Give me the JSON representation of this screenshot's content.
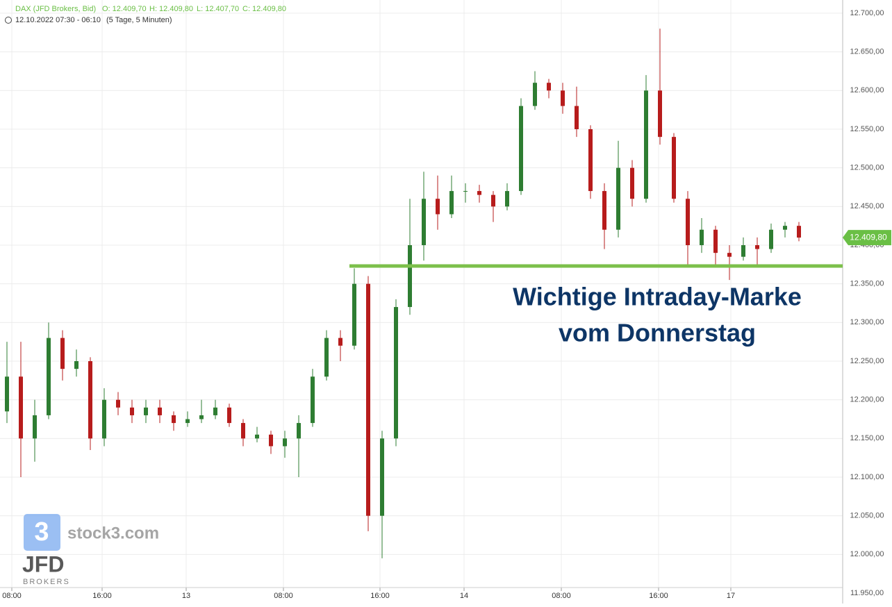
{
  "chart_data": {
    "type": "candlestick",
    "title": "DAX (JFD Brokers, Bid)",
    "ohlc_header": [
      "O: 12.409,70",
      "H: 12.409,80",
      "L: 12.407,70",
      "C: 12.409,80"
    ],
    "subtitle": "12.10.2022 07:30 - 06:10",
    "period": "(5 Tage, 5 Minuten)",
    "x": [
      0,
      1,
      2,
      3,
      4,
      5,
      6,
      7,
      8,
      9,
      10,
      11,
      12,
      13,
      14,
      15,
      16,
      17,
      18,
      19,
      20,
      21,
      22,
      23,
      24,
      25,
      26,
      27,
      28,
      29,
      30,
      31,
      32,
      33,
      34,
      35,
      36,
      37,
      38,
      39,
      40,
      41,
      42,
      43,
      44,
      45,
      46,
      47,
      48,
      49,
      50,
      51,
      52,
      53,
      54,
      55,
      56,
      57
    ],
    "open": [
      12185,
      12230,
      12150,
      12180,
      12280,
      12240,
      12250,
      12150,
      12200,
      12190,
      12180,
      12190,
      12180,
      12170,
      12175,
      12180,
      12190,
      12170,
      12150,
      12155,
      12140,
      12150,
      12170,
      12230,
      12280,
      12270,
      12350,
      12050,
      12150,
      12320,
      12400,
      12460,
      12440,
      12470,
      12470,
      12465,
      12450,
      12470,
      12580,
      12610,
      12600,
      12580,
      12550,
      12470,
      12420,
      12500,
      12460,
      12600,
      12540,
      12460,
      12400,
      12420,
      12390,
      12385,
      12400,
      12395,
      12420,
      12425
    ],
    "high": [
      12275,
      12275,
      12200,
      12300,
      12290,
      12265,
      12255,
      12215,
      12210,
      12200,
      12200,
      12200,
      12185,
      12185,
      12200,
      12200,
      12195,
      12175,
      12165,
      12160,
      12160,
      12180,
      12240,
      12290,
      12290,
      12370,
      12360,
      12160,
      12330,
      12460,
      12495,
      12490,
      12490,
      12480,
      12478,
      12470,
      12480,
      12590,
      12625,
      12615,
      12610,
      12605,
      12555,
      12480,
      12535,
      12510,
      12620,
      12680,
      12545,
      12470,
      12435,
      12425,
      12400,
      12410,
      12410,
      12428,
      12430,
      12430
    ],
    "low": [
      12170,
      12100,
      12120,
      12175,
      12225,
      12230,
      12135,
      12140,
      12180,
      12170,
      12170,
      12170,
      12160,
      12165,
      12170,
      12175,
      12165,
      12140,
      12145,
      12130,
      12125,
      12100,
      12165,
      12225,
      12250,
      12265,
      12030,
      11995,
      12140,
      12310,
      12380,
      12420,
      12435,
      12455,
      12455,
      12430,
      12445,
      12465,
      12575,
      12590,
      12570,
      12540,
      12460,
      12395,
      12410,
      12450,
      12455,
      12530,
      12455,
      12375,
      12390,
      12375,
      12355,
      12380,
      12375,
      12390,
      12410,
      12405
    ],
    "close": [
      12230,
      12150,
      12180,
      12280,
      12240,
      12250,
      12150,
      12200,
      12190,
      12180,
      12190,
      12180,
      12170,
      12175,
      12180,
      12190,
      12170,
      12150,
      12155,
      12140,
      12150,
      12170,
      12230,
      12280,
      12270,
      12350,
      12050,
      12150,
      12320,
      12400,
      12460,
      12440,
      12470,
      12470,
      12465,
      12450,
      12470,
      12580,
      12610,
      12600,
      12580,
      12550,
      12470,
      12420,
      12500,
      12460,
      12600,
      12540,
      12460,
      12400,
      12420,
      12390,
      12385,
      12400,
      12395,
      12420,
      12425,
      12409.8
    ],
    "up_color": "#2e7d32",
    "down_color": "#b71c1c",
    "xlim": [
      -0.5,
      60.15
    ],
    "xticks": [
      {
        "value": 0.35,
        "label": "08:00"
      },
      {
        "value": 6.85,
        "label": "16:00"
      },
      {
        "value": 12.9,
        "label": "13"
      },
      {
        "value": 19.9,
        "label": "08:00"
      },
      {
        "value": 26.85,
        "label": "16:00"
      },
      {
        "value": 32.9,
        "label": "14"
      },
      {
        "value": 39.9,
        "label": "08:00"
      },
      {
        "value": 46.9,
        "label": "16:00"
      },
      {
        "value": 52.1,
        "label": "17"
      }
    ],
    "ylim": [
      11950,
      12700
    ],
    "yticks": [
      {
        "value": 11950,
        "label": "11.950,00"
      },
      {
        "value": 12000,
        "label": "12.000,00"
      },
      {
        "value": 12050,
        "label": "12.050,00"
      },
      {
        "value": 12100,
        "label": "12.100,00"
      },
      {
        "value": 12150,
        "label": "12.150,00"
      },
      {
        "value": 12200,
        "label": "12.200,00"
      },
      {
        "value": 12250,
        "label": "12.250,00"
      },
      {
        "value": 12300,
        "label": "12.300,00"
      },
      {
        "value": 12350,
        "label": "12.350,00"
      },
      {
        "value": 12400,
        "label": "12.400,00"
      },
      {
        "value": 12450,
        "label": "12.450,00"
      },
      {
        "value": 12500,
        "label": "12.500,00"
      },
      {
        "value": 12550,
        "label": "12.550,00"
      },
      {
        "value": 12600,
        "label": "12.600,00"
      },
      {
        "value": 12650,
        "label": "12.650,00"
      },
      {
        "value": 12700,
        "label": "12.700,00"
      }
    ],
    "grid": true,
    "last_price": {
      "value": 12409.8,
      "label": "12.409,80"
    },
    "last_price_color": "#6abf45",
    "level": 12373,
    "level_start_x": 24.65,
    "level_color": "#7cc04b",
    "annotation": [
      "Wichtige Intraday-Marke",
      "vom Donnerstag"
    ],
    "annotation_color": "#0d3566",
    "watermarks": [
      "stock3.com",
      "JFD",
      "BROKERS"
    ]
  }
}
